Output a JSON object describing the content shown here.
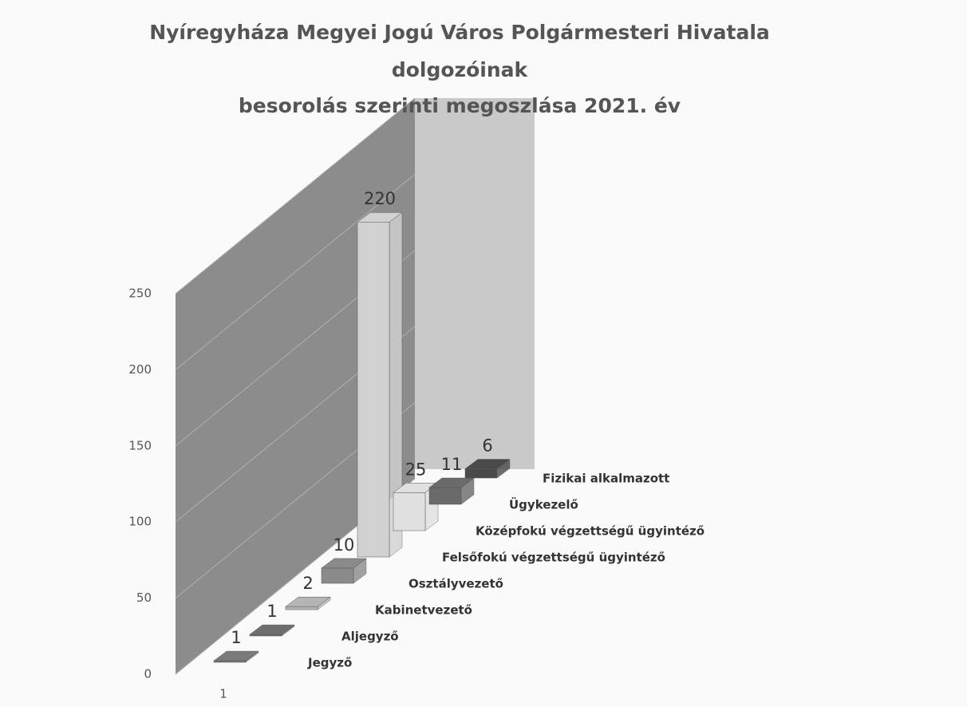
{
  "chart_data": {
    "type": "bar3d",
    "title": [
      "Nyíregyháza Megyei Jogú Város Polgármesteri Hivatala",
      "dolgozóinak",
      "besorolás szerinti megoszlása 2021. év"
    ],
    "categories": [
      "Jegyző",
      "Aljegyző",
      "Kabinetvezető",
      "Osztályvezető",
      "Felsőfokú végzettségű ügyintéző",
      "Középfokú végzettségű ügyintéző",
      "Ügykezelő",
      "Fizikai alkalmazott"
    ],
    "series": [
      {
        "name": "1",
        "values": [
          1,
          1,
          2,
          10,
          220,
          25,
          11,
          6
        ],
        "colors": [
          "#7a7a7a",
          "#6e6e6e",
          "#b5b5b5",
          "#8a8a8a",
          "#d2d2d2",
          "#e0e0e0",
          "#6a6a6a",
          "#4a4a4a"
        ]
      }
    ],
    "ylim": [
      0,
      250
    ],
    "yticks": [
      0,
      50,
      100,
      150,
      200,
      250
    ],
    "grid": true
  }
}
